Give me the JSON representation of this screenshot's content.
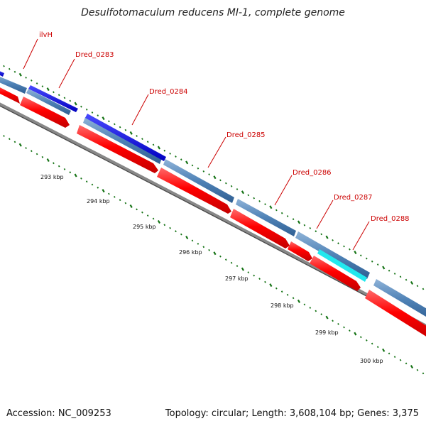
{
  "title": "Desulfotomaculum reducens MI-1, complete genome",
  "accession_text": "Accession: NC_009253",
  "summary_text": "Topology: circular; Length: 3,608,104 bp; Genes: 3,375",
  "colors": {
    "forward_strand": "#1010e0",
    "highlight_feature": "#22e8ee",
    "gene_track": "#4f82b6",
    "reverse_cds": "#ff0000",
    "backbone": "#777777",
    "ticks": "#157315",
    "label_text": "#cc0000",
    "label_leader": "#cc0000"
  },
  "gene_labels": [
    "ilvH",
    "Dred_0283",
    "Dred_0284",
    "Dred_0285",
    "Dred_0286",
    "Dred_0287",
    "Dred_0288"
  ],
  "kbp_labels": [
    "293 kbp",
    "294 kbp",
    "295 kbp",
    "296 kbp",
    "297 kbp",
    "298 kbp",
    "299 kbp",
    "300 kbp"
  ]
}
